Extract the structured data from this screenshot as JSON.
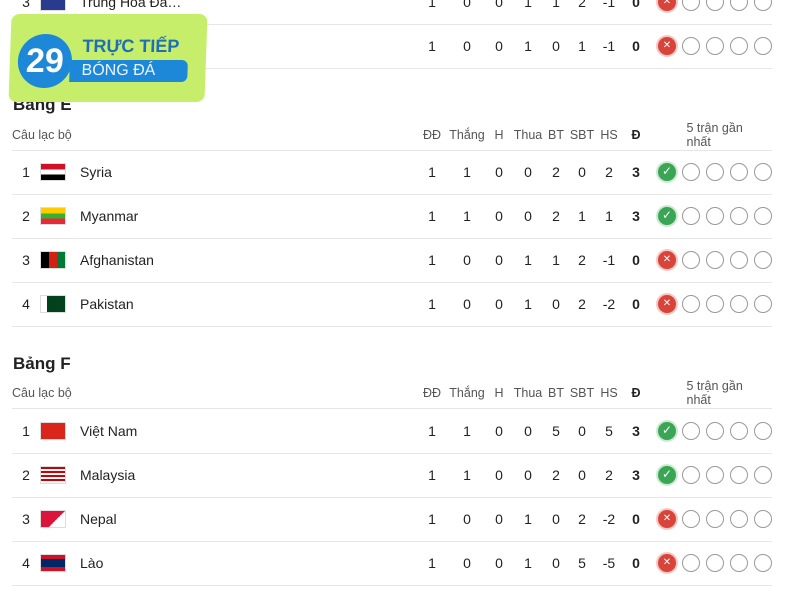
{
  "columns": {
    "club": "Câu lạc bộ",
    "played": "ĐĐ",
    "won": "Thắng",
    "draw": "H",
    "lost": "Thua",
    "gf": "BT",
    "ga": "SBT",
    "gd": "HS",
    "pts": "Đ",
    "form": "5 trận gần nhất"
  },
  "logo": {
    "number": "29",
    "live": "Live",
    "line1": "TRỰC TIẾP",
    "line2": "BÓNG ĐÁ"
  },
  "previous_group": {
    "rows": [
      {
        "rank": "3",
        "team": "Trung Hoa Đà…",
        "flag": "chinese-taipei",
        "stats": [
          "1",
          "0",
          "0",
          "1",
          "1",
          "2",
          "-1",
          "0"
        ],
        "form": [
          "L",
          "",
          "",
          "",
          ""
        ]
      },
      {
        "rank": "",
        "team": "",
        "flag": "",
        "stats": [
          "1",
          "0",
          "0",
          "1",
          "0",
          "1",
          "-1",
          "0"
        ],
        "form": [
          "L",
          "",
          "",
          "",
          ""
        ]
      }
    ]
  },
  "groups": [
    {
      "title": "Bảng E",
      "rows": [
        {
          "rank": "1",
          "team": "Syria",
          "flag": "syria",
          "stats": [
            "1",
            "1",
            "0",
            "0",
            "2",
            "0",
            "2",
            "3"
          ],
          "form": [
            "W",
            "",
            "",
            "",
            ""
          ]
        },
        {
          "rank": "2",
          "team": "Myanmar",
          "flag": "myanmar",
          "stats": [
            "1",
            "1",
            "0",
            "0",
            "2",
            "1",
            "1",
            "3"
          ],
          "form": [
            "W",
            "",
            "",
            "",
            ""
          ]
        },
        {
          "rank": "3",
          "team": "Afghanistan",
          "flag": "afghanistan",
          "stats": [
            "1",
            "0",
            "0",
            "1",
            "1",
            "2",
            "-1",
            "0"
          ],
          "form": [
            "L",
            "",
            "",
            "",
            ""
          ]
        },
        {
          "rank": "4",
          "team": "Pakistan",
          "flag": "pakistan",
          "stats": [
            "1",
            "0",
            "0",
            "1",
            "0",
            "2",
            "-2",
            "0"
          ],
          "form": [
            "L",
            "",
            "",
            "",
            ""
          ]
        }
      ]
    },
    {
      "title": "Bảng F",
      "rows": [
        {
          "rank": "1",
          "team": "Việt Nam",
          "flag": "vietnam",
          "stats": [
            "1",
            "1",
            "0",
            "0",
            "5",
            "0",
            "5",
            "3"
          ],
          "form": [
            "W",
            "",
            "",
            "",
            ""
          ]
        },
        {
          "rank": "2",
          "team": "Malaysia",
          "flag": "malaysia",
          "stats": [
            "1",
            "1",
            "0",
            "0",
            "2",
            "0",
            "2",
            "3"
          ],
          "form": [
            "W",
            "",
            "",
            "",
            ""
          ]
        },
        {
          "rank": "3",
          "team": "Nepal",
          "flag": "nepal",
          "stats": [
            "1",
            "0",
            "0",
            "1",
            "0",
            "2",
            "-2",
            "0"
          ],
          "form": [
            "L",
            "",
            "",
            "",
            ""
          ]
        },
        {
          "rank": "4",
          "team": "Lào",
          "flag": "laos",
          "stats": [
            "1",
            "0",
            "0",
            "1",
            "0",
            "5",
            "-5",
            "0"
          ],
          "form": [
            "L",
            "",
            "",
            "",
            ""
          ]
        }
      ]
    }
  ],
  "colors": {
    "win": "#3aa655",
    "loss": "#d9443a",
    "logo_bg": "#c6ee6a",
    "logo_blue": "#1e88d8"
  }
}
